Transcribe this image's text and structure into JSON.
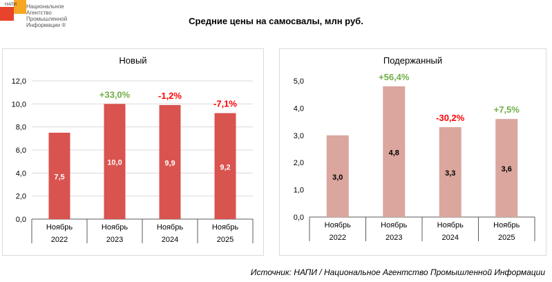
{
  "logo": {
    "abbr": "НАПИ",
    "name": "Национальное Агентство Промышленной Информации ®"
  },
  "title": "Средние цены на самосвалы, млн руб.",
  "source": "Источник: НАПИ / Национальное Агентство Промышленной Информации",
  "colors": {
    "new_bar": "#d9534f",
    "used_bar": "#dba69d",
    "positive": "#70ad47",
    "negative": "#ff0000"
  },
  "chart_data": [
    {
      "type": "bar",
      "title": "Новый",
      "categories": [
        [
          "Ноябрь",
          "2022"
        ],
        [
          "Ноябрь",
          "2023"
        ],
        [
          "Ноябрь",
          "2024"
        ],
        [
          "Ноябрь",
          "2025"
        ]
      ],
      "values": [
        7.5,
        10.0,
        9.9,
        9.2
      ],
      "value_labels": [
        "7,5",
        "10,0",
        "9,9",
        "9,2"
      ],
      "change_labels": [
        "",
        "+33,0%",
        "-1,2%",
        "-7,1%"
      ],
      "ylim": [
        0,
        12
      ],
      "yticks": [
        "0,0",
        "2,0",
        "4,0",
        "6,0",
        "8,0",
        "10,0",
        "12,0"
      ],
      "grid": true
    },
    {
      "type": "bar",
      "title": "Подержанный",
      "categories": [
        [
          "Ноябрь",
          "2022"
        ],
        [
          "Ноябрь",
          "2023"
        ],
        [
          "Ноябрь",
          "2024"
        ],
        [
          "Ноябрь",
          "2025"
        ]
      ],
      "values": [
        3.0,
        4.8,
        3.3,
        3.6
      ],
      "value_labels": [
        "3,0",
        "4,8",
        "3,3",
        "3,6"
      ],
      "change_labels": [
        "",
        "+56,4%",
        "-30,2%",
        "+7,5%"
      ],
      "ylim": [
        0,
        5
      ],
      "yticks": [
        "0,0",
        "1,0",
        "2,0",
        "3,0",
        "4,0",
        "5,0"
      ],
      "grid": false
    }
  ]
}
